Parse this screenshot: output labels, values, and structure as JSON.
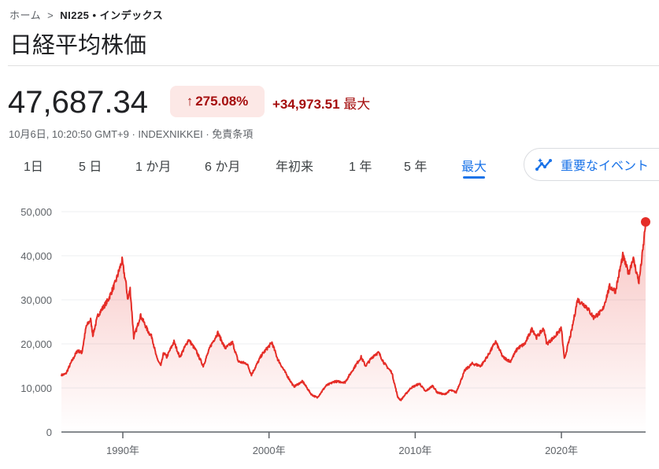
{
  "breadcrumb": {
    "home": "ホーム",
    "current": "NI225 • インデックス"
  },
  "title": "日経平均株価",
  "quote": {
    "price": "47,687.34",
    "change_percent": "275.08%",
    "change_value": "+34,973.51",
    "change_period": "最大",
    "direction": "up",
    "meta": "10月6日, 10:20:50 GMT+9 · INDEXNIKKEI · 免責条項"
  },
  "tabs": [
    {
      "label": "1日"
    },
    {
      "label": "5 日"
    },
    {
      "label": "1 か月"
    },
    {
      "label": "6 か月"
    },
    {
      "label": "年初来"
    },
    {
      "label": "1 年"
    },
    {
      "label": "5 年"
    },
    {
      "label": "最大",
      "active": true
    }
  ],
  "events_button": {
    "label": "重要なイベント",
    "icon": "insights-icon"
  },
  "colors": {
    "line": "#e52d27",
    "accent": "#1a73e8",
    "negative_text": "#a50e0e",
    "badge_bg": "#fce8e6"
  },
  "chart_data": {
    "type": "area",
    "x_ticks": [
      1990,
      2000,
      2010,
      2020
    ],
    "x_tick_labels": [
      "1990年",
      "2000年",
      "2010年",
      "2020年"
    ],
    "y_ticks": [
      0,
      10000,
      20000,
      30000,
      40000,
      50000
    ],
    "y_tick_labels": [
      "0",
      "10,000",
      "20,000",
      "30,000",
      "40,000",
      "50,000"
    ],
    "xlim": [
      1985.8,
      2025.76
    ],
    "ylim": [
      0,
      50000
    ],
    "grid": true,
    "points": [
      [
        1985.8,
        12900
      ],
      [
        1986.1,
        13200
      ],
      [
        1986.5,
        16000
      ],
      [
        1986.9,
        18500
      ],
      [
        1987.2,
        18000
      ],
      [
        1987.5,
        24000
      ],
      [
        1987.8,
        25500
      ],
      [
        1987.95,
        22000
      ],
      [
        1988.3,
        26500
      ],
      [
        1988.6,
        28000
      ],
      [
        1989.0,
        30000
      ],
      [
        1989.5,
        34000
      ],
      [
        1989.95,
        38900
      ],
      [
        1990.2,
        34000
      ],
      [
        1990.35,
        30000
      ],
      [
        1990.5,
        32500
      ],
      [
        1990.75,
        21500
      ],
      [
        1991.0,
        24000
      ],
      [
        1991.2,
        26500
      ],
      [
        1991.5,
        24500
      ],
      [
        1991.7,
        23000
      ],
      [
        1992.0,
        21500
      ],
      [
        1992.3,
        17000
      ],
      [
        1992.6,
        15000
      ],
      [
        1992.8,
        18000
      ],
      [
        1993.0,
        17000
      ],
      [
        1993.5,
        20500
      ],
      [
        1993.9,
        17000
      ],
      [
        1994.5,
        21000
      ],
      [
        1995.0,
        18500
      ],
      [
        1995.5,
        15000
      ],
      [
        1996.0,
        19500
      ],
      [
        1996.5,
        22500
      ],
      [
        1997.0,
        19000
      ],
      [
        1997.5,
        20300
      ],
      [
        1997.9,
        16000
      ],
      [
        1998.5,
        15500
      ],
      [
        1998.8,
        13000
      ],
      [
        1999.5,
        17500
      ],
      [
        2000.2,
        20300
      ],
      [
        2000.6,
        16500
      ],
      [
        2001.2,
        13000
      ],
      [
        2001.7,
        10300
      ],
      [
        2002.3,
        11500
      ],
      [
        2002.9,
        8500
      ],
      [
        2003.3,
        7800
      ],
      [
        2003.9,
        10500
      ],
      [
        2004.5,
        11500
      ],
      [
        2005.2,
        11300
      ],
      [
        2005.9,
        15000
      ],
      [
        2006.3,
        17000
      ],
      [
        2006.6,
        15000
      ],
      [
        2007.2,
        17500
      ],
      [
        2007.5,
        18000
      ],
      [
        2007.9,
        15500
      ],
      [
        2008.4,
        13500
      ],
      [
        2008.8,
        8000
      ],
      [
        2009.0,
        7200
      ],
      [
        2009.7,
        10000
      ],
      [
        2010.3,
        11000
      ],
      [
        2010.7,
        9200
      ],
      [
        2011.2,
        10500
      ],
      [
        2011.5,
        9000
      ],
      [
        2012.0,
        8500
      ],
      [
        2012.4,
        9500
      ],
      [
        2012.8,
        9000
      ],
      [
        2013.4,
        14000
      ],
      [
        2013.9,
        15500
      ],
      [
        2014.5,
        15000
      ],
      [
        2015.0,
        17500
      ],
      [
        2015.5,
        20500
      ],
      [
        2016.0,
        17000
      ],
      [
        2016.5,
        16000
      ],
      [
        2017.0,
        19000
      ],
      [
        2017.5,
        20000
      ],
      [
        2018.0,
        23500
      ],
      [
        2018.3,
        21500
      ],
      [
        2018.8,
        23500
      ],
      [
        2019.0,
        20000
      ],
      [
        2019.5,
        21500
      ],
      [
        2020.0,
        23500
      ],
      [
        2020.2,
        16500
      ],
      [
        2020.7,
        23000
      ],
      [
        2021.1,
        30000
      ],
      [
        2021.7,
        28500
      ],
      [
        2022.2,
        26000
      ],
      [
        2022.8,
        27500
      ],
      [
        2023.3,
        33000
      ],
      [
        2023.7,
        32000
      ],
      [
        2024.2,
        40000
      ],
      [
        2024.6,
        36000
      ],
      [
        2024.9,
        39500
      ],
      [
        2025.3,
        34000
      ],
      [
        2025.6,
        42000
      ],
      [
        2025.76,
        47687.34
      ]
    ]
  }
}
